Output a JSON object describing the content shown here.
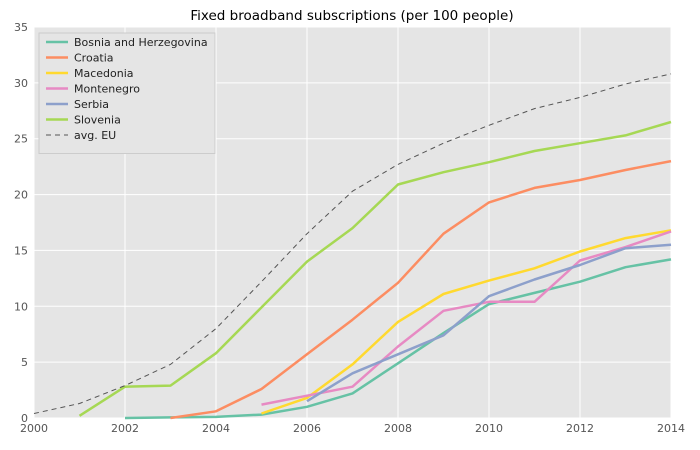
{
  "chart_data": {
    "type": "line",
    "title": "Fixed broadband subscriptions (per 100 people)",
    "xlabel": "",
    "ylabel": "",
    "xlim": [
      2000,
      2014
    ],
    "ylim": [
      0,
      35
    ],
    "x_ticks": [
      "2000",
      "2002",
      "2004",
      "2006",
      "2008",
      "2010",
      "2012",
      "2014"
    ],
    "y_ticks": [
      "0",
      "5",
      "10",
      "15",
      "20",
      "25",
      "30",
      "35"
    ],
    "grid": true,
    "legend_position": "top-left",
    "background_color": "#e5e5e5",
    "grid_color": "#ffffff",
    "series": [
      {
        "name": "Bosnia and Herzegovina",
        "color": "#66c2a5",
        "dashed": false,
        "x": [
          2002,
          2003,
          2004,
          2005,
          2006,
          2007,
          2008,
          2009,
          2010,
          2011,
          2012,
          2013,
          2014
        ],
        "values": [
          0.0,
          0.05,
          0.1,
          0.3,
          1.0,
          2.2,
          4.9,
          7.6,
          10.2,
          11.2,
          12.2,
          13.5,
          14.2
        ]
      },
      {
        "name": "Croatia",
        "color": "#fc8d62",
        "dashed": false,
        "x": [
          2003,
          2004,
          2005,
          2006,
          2007,
          2008,
          2009,
          2010,
          2011,
          2012,
          2013,
          2014
        ],
        "values": [
          0.0,
          0.6,
          2.6,
          5.7,
          8.8,
          12.1,
          16.5,
          19.3,
          20.6,
          21.3,
          22.2,
          23.0
        ]
      },
      {
        "name": "Macedonia",
        "color": "#ffd92f",
        "dashed": false,
        "x": [
          2005,
          2006,
          2007,
          2008,
          2009,
          2010,
          2011,
          2012,
          2013,
          2014
        ],
        "values": [
          0.4,
          1.8,
          4.8,
          8.6,
          11.1,
          12.3,
          13.4,
          14.9,
          16.1,
          16.8
        ]
      },
      {
        "name": "Montenegro",
        "color": "#e78ac3",
        "dashed": false,
        "x": [
          2005,
          2006,
          2007,
          2008,
          2009,
          2010,
          2011,
          2012,
          2013,
          2014
        ],
        "values": [
          1.2,
          2.0,
          2.8,
          6.4,
          9.6,
          10.4,
          10.4,
          14.1,
          15.3,
          16.7
        ]
      },
      {
        "name": "Serbia",
        "color": "#8da0cb",
        "dashed": false,
        "x": [
          2006,
          2007,
          2008,
          2009,
          2010,
          2011,
          2012,
          2013,
          2014
        ],
        "values": [
          1.5,
          4.0,
          5.7,
          7.4,
          10.9,
          12.4,
          13.7,
          15.2,
          15.5
        ]
      },
      {
        "name": "Slovenia",
        "color": "#a6d854",
        "dashed": false,
        "x": [
          2001,
          2002,
          2003,
          2004,
          2005,
          2006,
          2007,
          2008,
          2009,
          2010,
          2011,
          2012,
          2013,
          2014
        ],
        "values": [
          0.2,
          2.8,
          2.9,
          5.8,
          9.9,
          14.0,
          17.0,
          20.9,
          22.0,
          22.9,
          23.9,
          24.6,
          25.3,
          26.5
        ]
      },
      {
        "name": "avg. EU",
        "color": "#555555",
        "dashed": true,
        "x": [
          2000,
          2001,
          2002,
          2003,
          2004,
          2005,
          2006,
          2007,
          2008,
          2009,
          2010,
          2011,
          2012,
          2013,
          2014
        ],
        "values": [
          0.4,
          1.3,
          2.9,
          4.8,
          8.0,
          12.2,
          16.5,
          20.3,
          22.7,
          24.6,
          26.2,
          27.7,
          28.7,
          29.9,
          30.8
        ]
      }
    ]
  }
}
